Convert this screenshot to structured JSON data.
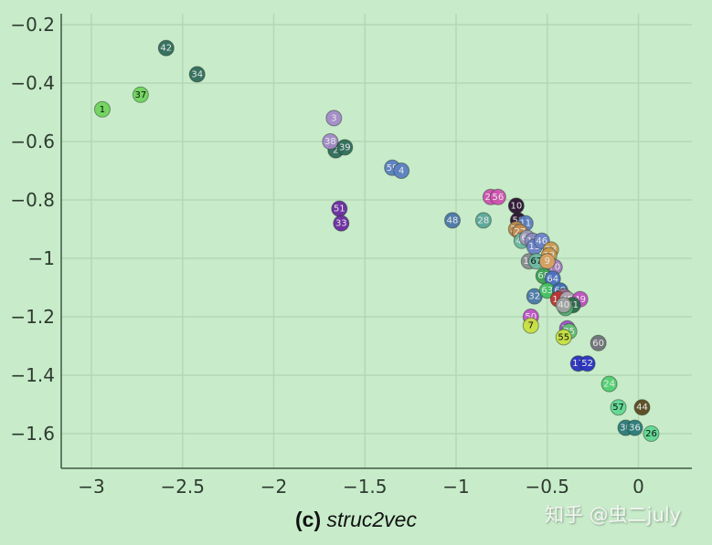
{
  "caption": {
    "tag": "(c)",
    "name": "struc2vec"
  },
  "watermark": "知乎 @虫二july",
  "colors": {
    "background": "#c8ecca",
    "grid": "#b4d8b6",
    "axis": "#3e5a42"
  },
  "chart_data": {
    "type": "scatter",
    "title": "(c) struc2vec",
    "xlabel": "",
    "ylabel": "",
    "xlim": [
      -3.17,
      0.31
    ],
    "ylim": [
      -1.72,
      -0.16
    ],
    "grid": true,
    "legend": null,
    "xticks": [
      -3,
      -2.5,
      -2,
      -1.5,
      -1,
      -0.5,
      0
    ],
    "xtick_labels": [
      "−3",
      "−2.5",
      "−2",
      "−1.5",
      "−1",
      "−0.5",
      "0"
    ],
    "yticks": [
      -0.2,
      -0.4,
      -0.6,
      -0.8,
      -1,
      -1.2,
      -1.4,
      -1.6
    ],
    "ytick_labels": [
      "−0.2",
      "−0.4",
      "−0.6",
      "−0.8",
      "−1",
      "−1.2",
      "−1.4",
      "−1.6"
    ],
    "points": [
      {
        "label": "1",
        "x": -2.94,
        "y": -0.49,
        "color": "#6fd45c",
        "text": "#111"
      },
      {
        "label": "37",
        "x": -2.73,
        "y": -0.44,
        "color": "#6fd45c",
        "text": "#111"
      },
      {
        "label": "42",
        "x": -2.59,
        "y": -0.28,
        "color": "#2f6b5a",
        "text": "#e8e8e8"
      },
      {
        "label": "34",
        "x": -2.42,
        "y": -0.37,
        "color": "#2f6b5a",
        "text": "#e8e8e8"
      },
      {
        "label": "3",
        "x": -1.67,
        "y": -0.52,
        "color": "#a48ac8",
        "text": "#e8e8e8"
      },
      {
        "label": "2",
        "x": -1.66,
        "y": -0.63,
        "color": "#2f6b5a",
        "text": "#e8e8e8"
      },
      {
        "label": "39",
        "x": -1.61,
        "y": -0.62,
        "color": "#2f6b5a",
        "text": "#e8e8e8"
      },
      {
        "label": "38",
        "x": -1.69,
        "y": -0.6,
        "color": "#a48ac8",
        "text": "#e8e8e8"
      },
      {
        "label": "59",
        "x": -1.35,
        "y": -0.69,
        "color": "#5a7ec0",
        "text": "#e8e8e8"
      },
      {
        "label": "4",
        "x": -1.3,
        "y": -0.7,
        "color": "#5a7ec0",
        "text": "#e8e8e8"
      },
      {
        "label": "51",
        "x": -1.64,
        "y": -0.83,
        "color": "#6a2aa0",
        "text": "#e8e8e8"
      },
      {
        "label": "33",
        "x": -1.63,
        "y": -0.88,
        "color": "#6a2aa0",
        "text": "#e8e8e8"
      },
      {
        "label": "48",
        "x": -1.02,
        "y": -0.87,
        "color": "#4a78a8",
        "text": "#e8e8e8"
      },
      {
        "label": "28",
        "x": -0.85,
        "y": -0.87,
        "color": "#5aa898",
        "text": "#e8e8e8"
      },
      {
        "label": "25",
        "x": -0.81,
        "y": -0.79,
        "color": "#d050b0",
        "text": "#e8e8e8"
      },
      {
        "label": "56",
        "x": -0.77,
        "y": -0.79,
        "color": "#d050b0",
        "text": "#e8e8e8"
      },
      {
        "label": "10",
        "x": -0.67,
        "y": -0.82,
        "color": "#2a1230",
        "text": "#e8e8e8"
      },
      {
        "label": "58",
        "x": -0.66,
        "y": -0.87,
        "color": "#2a1230",
        "text": "#e8e8e8"
      },
      {
        "label": "11",
        "x": -0.62,
        "y": -0.88,
        "color": "#5a7ec0",
        "text": "#e8e8e8"
      },
      {
        "label": "21",
        "x": -0.67,
        "y": -0.9,
        "color": "#c08a50",
        "text": "#e8e8e8"
      },
      {
        "label": "27",
        "x": -0.65,
        "y": -0.91,
        "color": "#c08a50",
        "text": "#e8e8e8"
      },
      {
        "label": "41",
        "x": -0.64,
        "y": -0.94,
        "color": "#6ab8a0",
        "text": "#e8e8e8"
      },
      {
        "label": "61",
        "x": -0.61,
        "y": -0.93,
        "color": "#9a9ab8",
        "text": "#e8e8e8"
      },
      {
        "label": "12",
        "x": -0.58,
        "y": -0.94,
        "color": "#8a8ac0",
        "text": "#e8e8e8"
      },
      {
        "label": "15",
        "x": -0.57,
        "y": -0.96,
        "color": "#6a82c8",
        "text": "#e8e8e8"
      },
      {
        "label": "46",
        "x": -0.53,
        "y": -0.94,
        "color": "#6a82c8",
        "text": "#e8e8e8"
      },
      {
        "label": "23",
        "x": -0.48,
        "y": -0.97,
        "color": "#c89850",
        "text": "#e8e8e8"
      },
      {
        "label": "13",
        "x": -0.49,
        "y": -0.99,
        "color": "#c89850",
        "text": "#e8e8e8"
      },
      {
        "label": "18",
        "x": -0.6,
        "y": -1.01,
        "color": "#8a8a90",
        "text": "#e8e8e8"
      },
      {
        "label": "67",
        "x": -0.56,
        "y": -1.01,
        "color": "#6ab8a0",
        "text": "#111"
      },
      {
        "label": "70",
        "x": -0.46,
        "y": -1.03,
        "color": "#a07ab8",
        "text": "#e8e8e8"
      },
      {
        "label": "9",
        "x": -0.5,
        "y": -1.01,
        "color": "#d8a060",
        "text": "#e8e8e8"
      },
      {
        "label": "68",
        "x": -0.52,
        "y": -1.06,
        "color": "#3aa050",
        "text": "#e8e8e8"
      },
      {
        "label": "64",
        "x": -0.47,
        "y": -1.07,
        "color": "#4a70c0",
        "text": "#e8e8e8"
      },
      {
        "label": "32",
        "x": -0.57,
        "y": -1.13,
        "color": "#4a78a8",
        "text": "#e8e8e8"
      },
      {
        "label": "63",
        "x": -0.5,
        "y": -1.11,
        "color": "#40c060",
        "text": "#e8e8e8"
      },
      {
        "label": "69",
        "x": -0.43,
        "y": -1.11,
        "color": "#3a6ab0",
        "text": "#e8e8e8"
      },
      {
        "label": "20",
        "x": -0.41,
        "y": -1.13,
        "color": "#9a6a8a",
        "text": "#e8e8e8"
      },
      {
        "label": "14",
        "x": -0.44,
        "y": -1.14,
        "color": "#c03030",
        "text": "#e8e8e8"
      },
      {
        "label": "45",
        "x": -0.39,
        "y": -1.14,
        "color": "#b0a0b0",
        "text": "#e8e8e8"
      },
      {
        "label": "49",
        "x": -0.32,
        "y": -1.14,
        "color": "#c050c0",
        "text": "#e8e8e8"
      },
      {
        "label": "31",
        "x": -0.36,
        "y": -1.16,
        "color": "#2a6a4a",
        "text": "#e8e8e8"
      },
      {
        "label": "8",
        "x": -0.4,
        "y": -1.17,
        "color": "#50b070",
        "text": "#e8e8e8"
      },
      {
        "label": "40",
        "x": -0.41,
        "y": -1.16,
        "color": "#a0a0a0",
        "text": "#e8e8e8"
      },
      {
        "label": "50",
        "x": -0.59,
        "y": -1.2,
        "color": "#c050c8",
        "text": "#e8e8e8"
      },
      {
        "label": "7",
        "x": -0.59,
        "y": -1.23,
        "color": "#c8e040",
        "text": "#111"
      },
      {
        "label": "53",
        "x": -0.39,
        "y": -1.24,
        "color": "#a050c8",
        "text": "#e8e8e8"
      },
      {
        "label": "35",
        "x": -0.38,
        "y": -1.25,
        "color": "#60c070",
        "text": "#e8e8e8"
      },
      {
        "label": "55",
        "x": -0.41,
        "y": -1.27,
        "color": "#c8e040",
        "text": "#111"
      },
      {
        "label": "60",
        "x": -0.22,
        "y": -1.29,
        "color": "#707078",
        "text": "#e8e8e8"
      },
      {
        "label": "17",
        "x": -0.33,
        "y": -1.36,
        "color": "#2a30c0",
        "text": "#e8e8e8"
      },
      {
        "label": "52",
        "x": -0.28,
        "y": -1.36,
        "color": "#2a30c0",
        "text": "#e8e8e8"
      },
      {
        "label": "24",
        "x": -0.16,
        "y": -1.43,
        "color": "#50d070",
        "text": "#e8e8e8"
      },
      {
        "label": "57",
        "x": -0.11,
        "y": -1.51,
        "color": "#60d890",
        "text": "#111"
      },
      {
        "label": "44",
        "x": 0.02,
        "y": -1.51,
        "color": "#5a4a20",
        "text": "#e8e8e8"
      },
      {
        "label": "30",
        "x": -0.07,
        "y": -1.58,
        "color": "#2a7a78",
        "text": "#e8e8e8"
      },
      {
        "label": "36",
        "x": -0.02,
        "y": -1.58,
        "color": "#2a7a78",
        "text": "#e8e8e8"
      },
      {
        "label": "26",
        "x": 0.07,
        "y": -1.6,
        "color": "#60d890",
        "text": "#111"
      }
    ]
  }
}
